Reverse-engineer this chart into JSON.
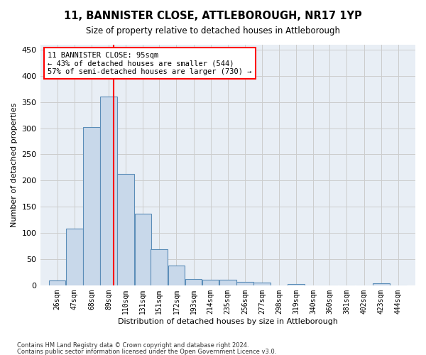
{
  "title": "11, BANNISTER CLOSE, ATTLEBOROUGH, NR17 1YP",
  "subtitle": "Size of property relative to detached houses in Attleborough",
  "xlabel": "Distribution of detached houses by size in Attleborough",
  "ylabel": "Number of detached properties",
  "footnote1": "Contains HM Land Registry data © Crown copyright and database right 2024.",
  "footnote2": "Contains public sector information licensed under the Open Government Licence v3.0.",
  "annotation_line1": "11 BANNISTER CLOSE: 95sqm",
  "annotation_line2": "← 43% of detached houses are smaller (544)",
  "annotation_line3": "57% of semi-detached houses are larger (730) →",
  "red_line_x": 95,
  "bar_color": "#c8d8ea",
  "bar_edge_color": "#5b8db8",
  "bar_edge_width": 0.8,
  "grid_color": "#cccccc",
  "background_color": "#e8eef5",
  "categories": [
    "26sqm",
    "47sqm",
    "68sqm",
    "89sqm",
    "110sqm",
    "131sqm",
    "151sqm",
    "172sqm",
    "193sqm",
    "214sqm",
    "235sqm",
    "256sqm",
    "277sqm",
    "298sqm",
    "319sqm",
    "340sqm",
    "360sqm",
    "381sqm",
    "402sqm",
    "423sqm",
    "444sqm"
  ],
  "bin_centers": [
    26,
    47,
    68,
    89,
    110,
    131,
    151,
    172,
    193,
    214,
    235,
    256,
    277,
    298,
    319,
    340,
    360,
    381,
    402,
    423,
    444
  ],
  "values": [
    9,
    108,
    302,
    361,
    213,
    137,
    69,
    38,
    12,
    11,
    10,
    6,
    5,
    0,
    3,
    0,
    0,
    0,
    0,
    4,
    0
  ],
  "ylim": [
    0,
    460
  ],
  "yticks": [
    0,
    50,
    100,
    150,
    200,
    250,
    300,
    350,
    400,
    450
  ],
  "xlim_left": 5,
  "xlim_right": 465
}
